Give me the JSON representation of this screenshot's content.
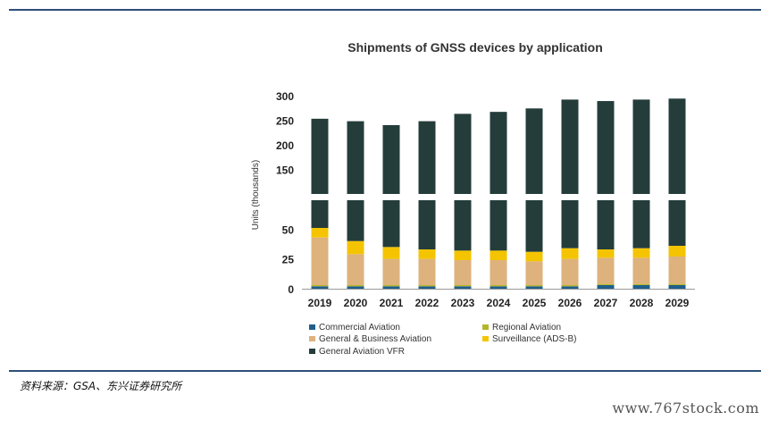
{
  "chart_data": {
    "type": "bar",
    "stacked": true,
    "broken_y_axis": true,
    "title": "Shipments of GNSS devices by application",
    "ylabel": "Units (thousands)",
    "xlabel": "",
    "categories": [
      "2019",
      "2020",
      "2021",
      "2022",
      "2023",
      "2024",
      "2025",
      "2026",
      "2027",
      "2028",
      "2029"
    ],
    "lower_ticks": [
      "0",
      "25",
      "50"
    ],
    "upper_ticks": [
      "150",
      "200",
      "250",
      "300"
    ],
    "series": [
      {
        "name": "Commercial Aviation",
        "color": "#1f5f8b",
        "values": [
          2,
          2,
          2,
          2,
          2,
          2,
          2,
          2,
          3,
          3,
          3
        ]
      },
      {
        "name": "Regional Aviation",
        "color": "#b5b52a",
        "values": [
          1,
          1,
          1,
          1,
          1,
          1,
          1,
          1,
          1,
          1,
          1
        ]
      },
      {
        "name": "General & Business Aviation",
        "color": "#ddb27c",
        "values": [
          40,
          26,
          22,
          22,
          21,
          21,
          20,
          22,
          22,
          22,
          23
        ]
      },
      {
        "name": "Surveillance (ADS-B)",
        "color": "#f5c400",
        "values": [
          8,
          11,
          10,
          8,
          8,
          8,
          8,
          9,
          7,
          8,
          9
        ]
      },
      {
        "name": "General Aviation VFR",
        "color": "#243d3b",
        "values": [
          202,
          208,
          205,
          215,
          231,
          235,
          243,
          258,
          256,
          258,
          258
        ]
      }
    ],
    "legend_position": "bottom",
    "grid": false
  },
  "source_text": "资料来源：GSA、东兴证券研究所",
  "watermark_text": "www.767stock.com"
}
